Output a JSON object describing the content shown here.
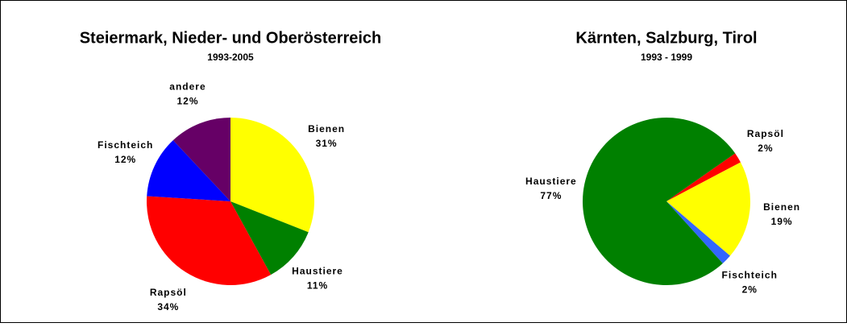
{
  "chart_data": [
    {
      "type": "pie",
      "title": "Steiermark, Nieder- und Oberösterreich",
      "subtitle": "1993-2005",
      "categories": [
        "Bienen",
        "Haustiere",
        "Rapsöl",
        "Fischteich",
        "andere"
      ],
      "values": [
        31,
        11,
        34,
        12,
        12
      ],
      "value_labels": [
        "31%",
        "11%",
        "34%",
        "12%",
        "12%"
      ],
      "colors": [
        "#ffff00",
        "#008000",
        "#ff0000",
        "#0000ff",
        "#660066"
      ]
    },
    {
      "type": "pie",
      "title": "Kärnten, Salzburg, Tirol",
      "subtitle": "1993 - 1999",
      "categories": [
        "Rapsöl",
        "Bienen",
        "Fischteich",
        "Haustiere"
      ],
      "values": [
        2,
        19,
        2,
        77
      ],
      "value_labels": [
        "2%",
        "19%",
        "2%",
        "77%"
      ],
      "colors": [
        "#ff0000",
        "#ffff00",
        "#3366ff",
        "#008000"
      ]
    }
  ]
}
